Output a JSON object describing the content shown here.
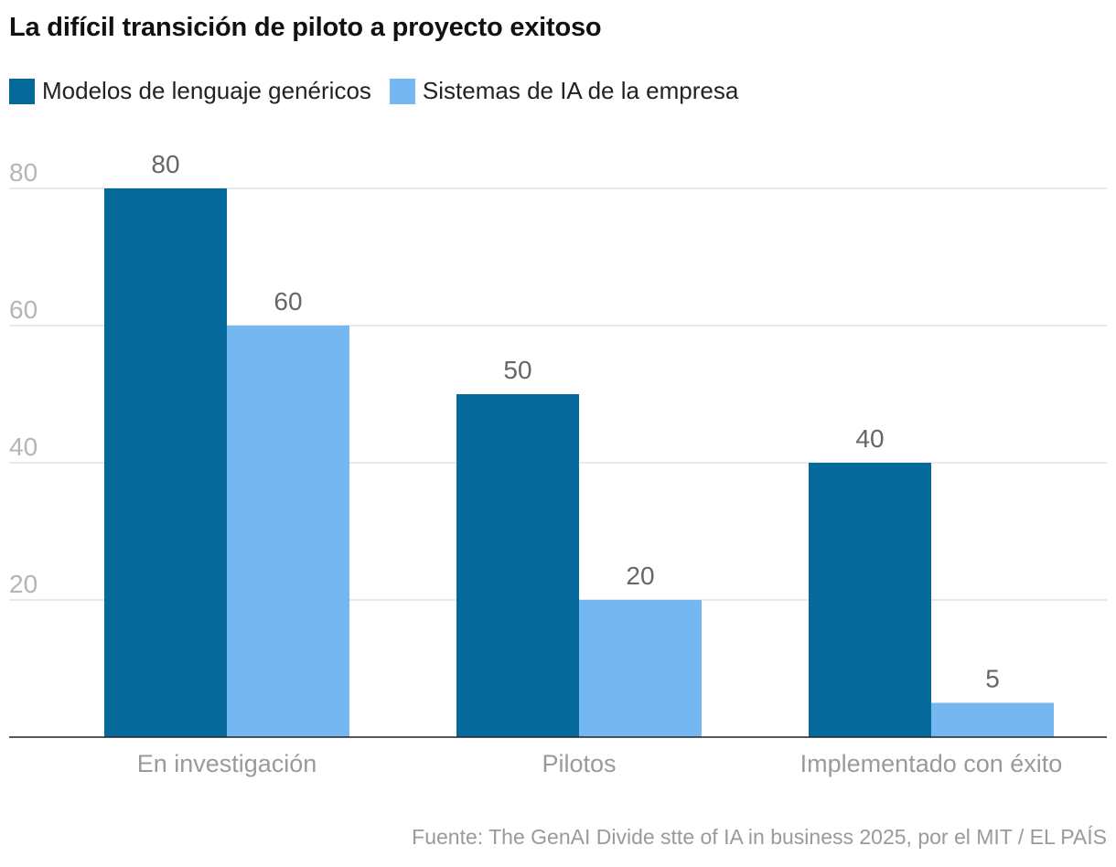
{
  "chart_data": {
    "type": "bar",
    "title": "La difícil transición de piloto a proyecto exitoso",
    "categories": [
      "En investigación",
      "Pilotos",
      "Implementado con éxito"
    ],
    "series": [
      {
        "name": "Modelos de lenguaje genéricos",
        "color": "#06699b",
        "values": [
          80,
          50,
          40
        ]
      },
      {
        "name": "Sistemas de IA de la empresa",
        "color": "#75b7f0",
        "values": [
          60,
          20,
          5
        ]
      }
    ],
    "yticks": [
      20,
      40,
      60,
      80
    ],
    "ylim": [
      0,
      80
    ],
    "xlabel": "",
    "ylabel": "",
    "grid": true,
    "legend_position": "top-left",
    "data_labels": true,
    "source": "Fuente: The GenAI Divide stte of IA in business 2025, por el MIT / EL PAÍS"
  }
}
